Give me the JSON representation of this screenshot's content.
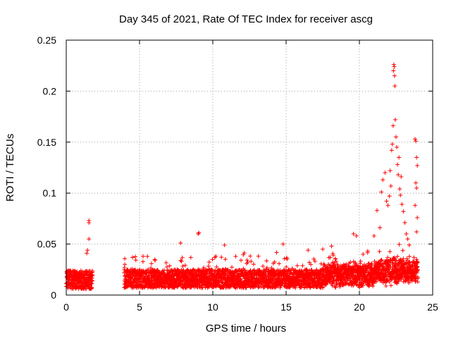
{
  "chart_data": {
    "type": "scatter",
    "title": "Day 345 of 2021, Rate Of TEC Index for receiver ascg",
    "xlabel": "GPS time / hours",
    "ylabel": "ROTI / TECUs",
    "xlim": [
      0,
      25
    ],
    "ylim": [
      0,
      0.25
    ],
    "x_ticks": [
      0,
      5,
      10,
      15,
      20,
      25
    ],
    "x_tick_labels": [
      "0",
      "5",
      "10",
      "15",
      "20",
      "25"
    ],
    "y_ticks": [
      0,
      0.05,
      0.1,
      0.15,
      0.2,
      0.25
    ],
    "y_tick_labels": [
      "0",
      "0.05",
      "0.1",
      "0.15",
      "0.2",
      "0.25"
    ],
    "grid": true,
    "marker": "plus",
    "color": "#ff0000",
    "series": [
      {
        "name": "ROTI",
        "data_gap_hours": [
          1.8,
          3.9
        ],
        "typical_range": [
          0.005,
          0.03
        ],
        "outliers": [
          {
            "x": 1.55,
            "y": 0.073
          },
          {
            "x": 1.55,
            "y": 0.071
          },
          {
            "x": 1.55,
            "y": 0.055
          },
          {
            "x": 1.45,
            "y": 0.044
          },
          {
            "x": 1.4,
            "y": 0.041
          },
          {
            "x": 0.1,
            "y": 0.023
          },
          {
            "x": 7.8,
            "y": 0.051
          },
          {
            "x": 9.05,
            "y": 0.061
          },
          {
            "x": 9.0,
            "y": 0.06
          },
          {
            "x": 10.8,
            "y": 0.049
          },
          {
            "x": 14.8,
            "y": 0.05
          },
          {
            "x": 16.5,
            "y": 0.044
          },
          {
            "x": 17.5,
            "y": 0.045
          },
          {
            "x": 18.1,
            "y": 0.048
          },
          {
            "x": 19.6,
            "y": 0.06
          },
          {
            "x": 19.8,
            "y": 0.058
          },
          {
            "x": 21.0,
            "y": 0.058
          },
          {
            "x": 21.2,
            "y": 0.083
          },
          {
            "x": 21.4,
            "y": 0.066
          },
          {
            "x": 21.5,
            "y": 0.101
          },
          {
            "x": 21.6,
            "y": 0.113
          },
          {
            "x": 21.75,
            "y": 0.12
          },
          {
            "x": 21.85,
            "y": 0.092
          },
          {
            "x": 21.95,
            "y": 0.088
          },
          {
            "x": 22.05,
            "y": 0.097
          },
          {
            "x": 22.1,
            "y": 0.122
          },
          {
            "x": 22.15,
            "y": 0.107
          },
          {
            "x": 22.2,
            "y": 0.142
          },
          {
            "x": 22.25,
            "y": 0.148
          },
          {
            "x": 22.3,
            "y": 0.166
          },
          {
            "x": 22.32,
            "y": 0.22
          },
          {
            "x": 22.35,
            "y": 0.226
          },
          {
            "x": 22.38,
            "y": 0.224
          },
          {
            "x": 22.4,
            "y": 0.215
          },
          {
            "x": 22.42,
            "y": 0.205
          },
          {
            "x": 22.45,
            "y": 0.172
          },
          {
            "x": 22.5,
            "y": 0.155
          },
          {
            "x": 22.55,
            "y": 0.145
          },
          {
            "x": 22.6,
            "y": 0.128
          },
          {
            "x": 22.65,
            "y": 0.118
          },
          {
            "x": 22.7,
            "y": 0.135
          },
          {
            "x": 22.75,
            "y": 0.104
          },
          {
            "x": 22.8,
            "y": 0.098
          },
          {
            "x": 22.85,
            "y": 0.116
          },
          {
            "x": 22.9,
            "y": 0.089
          },
          {
            "x": 23.0,
            "y": 0.082
          },
          {
            "x": 23.1,
            "y": 0.071
          },
          {
            "x": 23.2,
            "y": 0.06
          },
          {
            "x": 23.3,
            "y": 0.055
          },
          {
            "x": 23.4,
            "y": 0.049
          },
          {
            "x": 23.8,
            "y": 0.153
          },
          {
            "x": 23.85,
            "y": 0.151
          },
          {
            "x": 23.9,
            "y": 0.135
          },
          {
            "x": 23.95,
            "y": 0.127
          },
          {
            "x": 23.85,
            "y": 0.11
          },
          {
            "x": 23.9,
            "y": 0.105
          },
          {
            "x": 23.8,
            "y": 0.088
          },
          {
            "x": 23.95,
            "y": 0.076
          },
          {
            "x": 23.9,
            "y": 0.062
          }
        ]
      }
    ]
  }
}
